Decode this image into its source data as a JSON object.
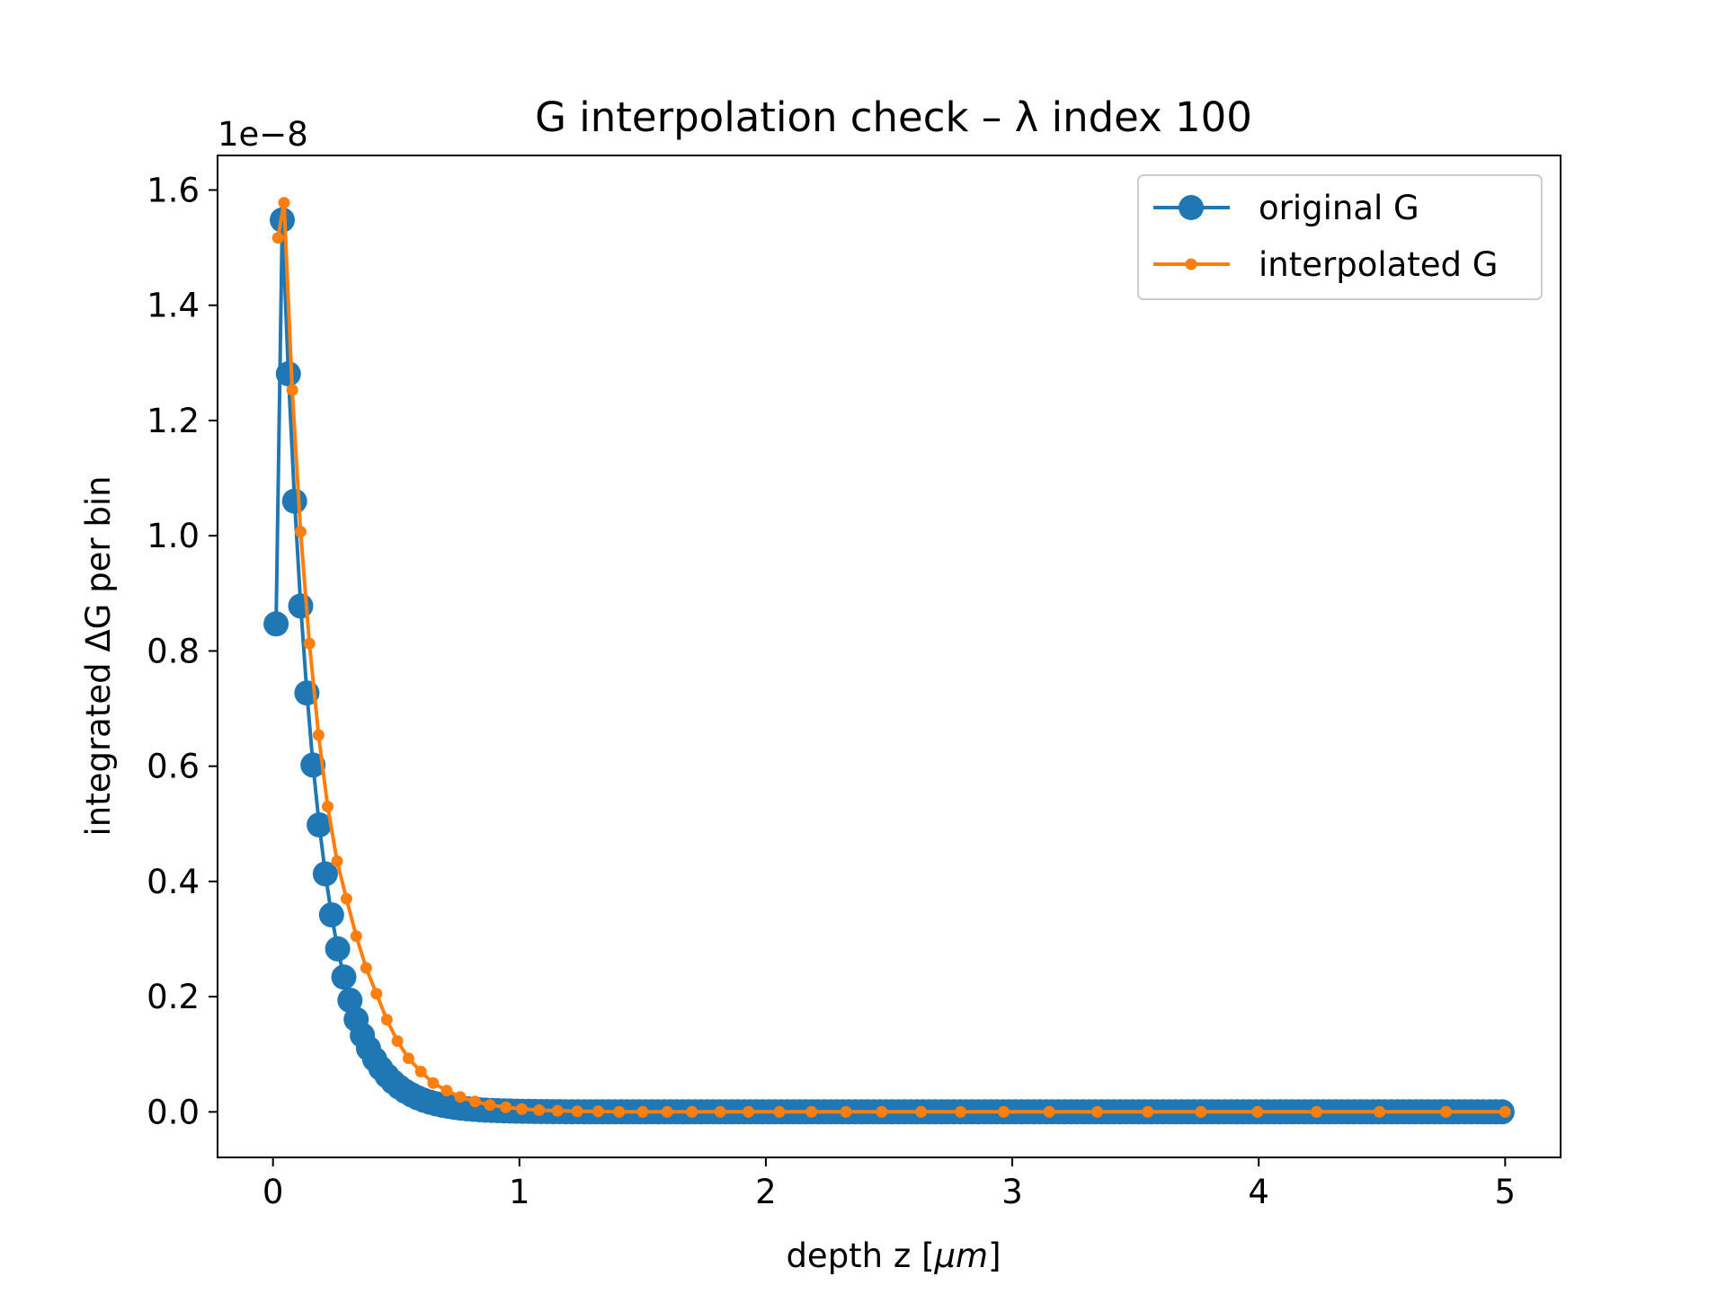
{
  "chart_data": {
    "type": "line",
    "title": "G interpolation check – λ index 100",
    "xlabel_prefix": "depth z [",
    "xlabel_unit": "μm",
    "xlabel_suffix": "]",
    "ylabel": "integrated ΔG per bin",
    "y_offset_label": "1e−8",
    "xlim": [
      -0.225,
      5.225
    ],
    "ylim": [
      -0.079,
      1.66
    ],
    "x_ticks": [
      0,
      1,
      2,
      3,
      4,
      5
    ],
    "x_tick_labels": [
      "0",
      "1",
      "2",
      "3",
      "4",
      "5"
    ],
    "y_ticks": [
      0.0,
      0.2,
      0.4,
      0.6,
      0.8,
      1.0,
      1.2,
      1.4,
      1.6
    ],
    "y_tick_labels": [
      "0.0",
      "0.2",
      "0.4",
      "0.6",
      "0.8",
      "1.0",
      "1.2",
      "1.4",
      "1.6"
    ],
    "grid": false,
    "legend_position": "top-right",
    "series": [
      {
        "name": "original G",
        "color": "#1f77b4",
        "marker": "large-circle",
        "x_start": 0.0125,
        "x_step": 0.025,
        "count": 200,
        "first_values": [
          0.847,
          1.548,
          1.281,
          1.06,
          0.878,
          0.727,
          0.602,
          0.498,
          0.413,
          0.342,
          0.283,
          0.234
        ],
        "decay_per_step": 0.8284
      },
      {
        "name": "interpolated G",
        "color": "#ff7f0e",
        "marker": "small-circle",
        "x": [
          0.02,
          0.045,
          0.078,
          0.112,
          0.148,
          0.185,
          0.222,
          0.26,
          0.298,
          0.338,
          0.378,
          0.42,
          0.462,
          0.505,
          0.55,
          0.6,
          0.65,
          0.705,
          0.76,
          0.82,
          0.88,
          0.945,
          1.01,
          1.08,
          1.155,
          1.235,
          1.32,
          1.405,
          1.5,
          1.6,
          1.7,
          1.815,
          1.93,
          2.055,
          2.185,
          2.325,
          2.47,
          2.63,
          2.79,
          2.965,
          3.15,
          3.345,
          3.55,
          3.765,
          3.995,
          4.235,
          4.49,
          4.76,
          5.0
        ],
        "y": [
          1.517,
          1.578,
          1.253,
          1.007,
          0.813,
          0.654,
          0.53,
          0.435,
          0.37,
          0.305,
          0.25,
          0.205,
          0.16,
          0.123,
          0.093,
          0.07,
          0.05,
          0.037,
          0.026,
          0.018,
          0.012,
          0.008,
          0.005,
          0.003,
          0.002,
          0.001,
          0.001,
          0.0,
          0.0,
          0.0,
          0.0,
          0.0,
          0.0,
          0.0,
          0.0,
          0.0,
          0.0,
          0.0,
          0.0,
          0.0,
          0.0,
          0.0,
          0.0,
          0.0,
          0.0,
          0.0,
          0.0,
          0.0,
          0.0
        ]
      }
    ]
  }
}
